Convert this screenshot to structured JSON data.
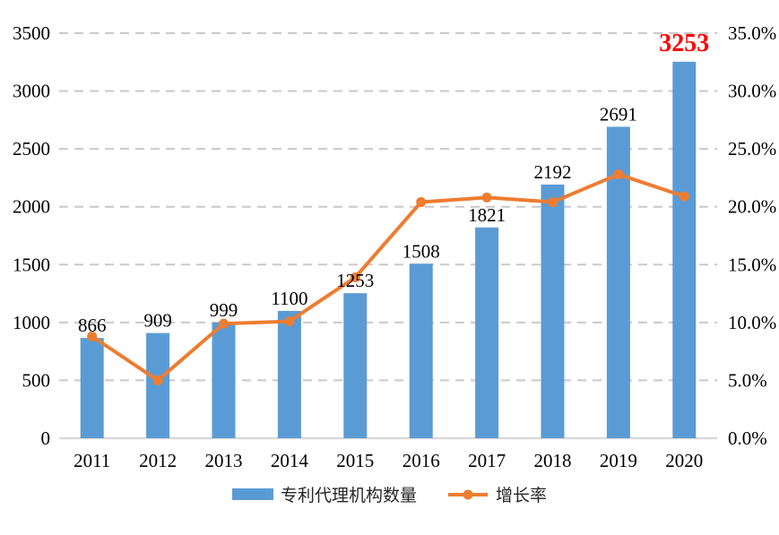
{
  "chart_data": {
    "type": "bar+line",
    "categories": [
      "2011",
      "2012",
      "2013",
      "2014",
      "2015",
      "2016",
      "2017",
      "2018",
      "2019",
      "2020"
    ],
    "series": [
      {
        "name": "专利代理机构数量",
        "type": "bar",
        "axis": "left",
        "values": [
          866,
          909,
          999,
          1100,
          1253,
          1508,
          1821,
          2192,
          2691,
          3253
        ],
        "color": "#5B9BD5"
      },
      {
        "name": "增长率",
        "type": "line",
        "axis": "right",
        "values_percent": [
          8.8,
          5.0,
          9.9,
          10.1,
          13.9,
          20.4,
          20.8,
          20.4,
          22.8,
          20.9
        ],
        "color": "#ED7D31"
      }
    ],
    "data_labels": [
      "866",
      "909",
      "999",
      "1100",
      "1253",
      "1508",
      "1821",
      "2192",
      "2691",
      "3253"
    ],
    "highlighted_label_index": 9,
    "highlighted_label_color": "#FF0000",
    "left_axis": {
      "min": 0,
      "max": 3500,
      "step": 500,
      "tick_labels": [
        "0",
        "500",
        "1000",
        "1500",
        "2000",
        "2500",
        "3000",
        "3500"
      ]
    },
    "right_axis": {
      "min": 0,
      "max": 35,
      "step": 5,
      "tick_labels": [
        "0.0%",
        "5.0%",
        "10.0%",
        "15.0%",
        "20.0%",
        "25.0%",
        "30.0%",
        "35.0%"
      ]
    },
    "title": "",
    "xlabel": "",
    "ylabel": "",
    "grid": "horizontal-dashed",
    "legend_position": "bottom"
  },
  "legend": {
    "bar_label": "专利代理机构数量",
    "line_label": "增长率"
  },
  "colors": {
    "bar": "#5B9BD5",
    "line": "#ED7D31",
    "highlight": "#FF0000",
    "gridline": "#C9C9C9",
    "axis_line": "#D9D9D9",
    "text": "#000000"
  }
}
